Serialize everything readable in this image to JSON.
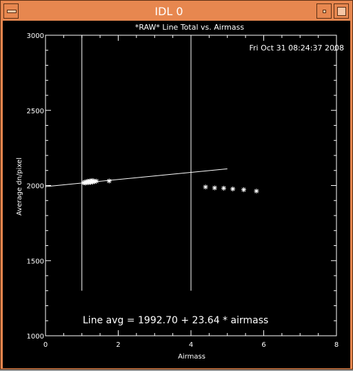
{
  "window": {
    "title": "IDL 0"
  },
  "chart_data": {
    "type": "scatter",
    "title": "*RAW* Line Total vs. Airmass",
    "timestamp": "Fri Oct 31 08:24:37 2008",
    "xlabel": "Airmass",
    "ylabel": "Average dn/pixel",
    "xlim": [
      0,
      8
    ],
    "ylim": [
      1000,
      3000
    ],
    "x_ticks": [
      "0",
      "2",
      "4",
      "6",
      "8"
    ],
    "y_ticks": [
      "1000",
      "1500",
      "2000",
      "2500",
      "3000"
    ],
    "x_minor_step": 0.5,
    "y_minor_step": 100,
    "marker": "asterisk",
    "grid": false,
    "vertical_lines": [
      1.0,
      4.0
    ],
    "vertical_line_range": [
      1300,
      3000
    ],
    "fit": {
      "intercept": 1992.7,
      "slope": 23.64,
      "x_range": [
        0,
        5.0
      ]
    },
    "fit_label": "Line avg = 1992.70 + 23.64 * airmass",
    "points": [
      {
        "x": 1.05,
        "y": 2018
      },
      {
        "x": 1.08,
        "y": 2022
      },
      {
        "x": 1.1,
        "y": 2016
      },
      {
        "x": 1.12,
        "y": 2025
      },
      {
        "x": 1.14,
        "y": 2020
      },
      {
        "x": 1.16,
        "y": 2028
      },
      {
        "x": 1.18,
        "y": 2019
      },
      {
        "x": 1.2,
        "y": 2024
      },
      {
        "x": 1.22,
        "y": 2030
      },
      {
        "x": 1.24,
        "y": 2021
      },
      {
        "x": 1.26,
        "y": 2027
      },
      {
        "x": 1.28,
        "y": 2033
      },
      {
        "x": 1.3,
        "y": 2023
      },
      {
        "x": 1.32,
        "y": 2031
      },
      {
        "x": 1.35,
        "y": 2026
      },
      {
        "x": 1.4,
        "y": 2029
      },
      {
        "x": 1.75,
        "y": 2030
      },
      {
        "x": 4.4,
        "y": 1990
      },
      {
        "x": 4.65,
        "y": 1984
      },
      {
        "x": 4.9,
        "y": 1982
      },
      {
        "x": 5.15,
        "y": 1977
      },
      {
        "x": 5.45,
        "y": 1972
      },
      {
        "x": 5.8,
        "y": 1963
      }
    ]
  }
}
